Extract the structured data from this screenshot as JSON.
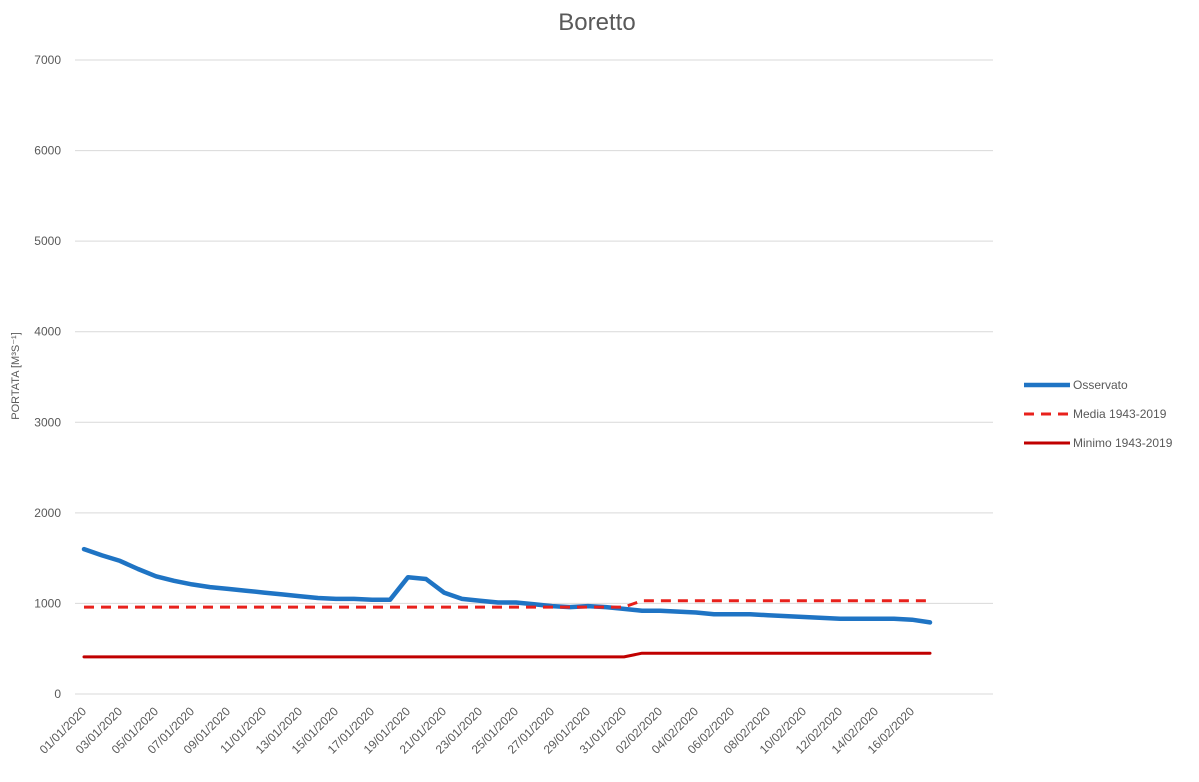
{
  "chart_data": {
    "type": "line",
    "title": "Boretto",
    "ylabel": "PORTATA [M³S⁻¹]",
    "xlabel": "",
    "ylim": [
      0,
      7000
    ],
    "yticks": [
      0,
      1000,
      2000,
      3000,
      4000,
      5000,
      6000,
      7000
    ],
    "grid": true,
    "legend_position": "right",
    "x": [
      "01/01/2020",
      "02/01/2020",
      "03/01/2020",
      "04/01/2020",
      "05/01/2020",
      "06/01/2020",
      "07/01/2020",
      "08/01/2020",
      "09/01/2020",
      "10/01/2020",
      "11/01/2020",
      "12/01/2020",
      "13/01/2020",
      "14/01/2020",
      "15/01/2020",
      "16/01/2020",
      "17/01/2020",
      "18/01/2020",
      "19/01/2020",
      "20/01/2020",
      "21/01/2020",
      "22/01/2020",
      "23/01/2020",
      "24/01/2020",
      "25/01/2020",
      "26/01/2020",
      "27/01/2020",
      "28/01/2020",
      "29/01/2020",
      "30/01/2020",
      "31/01/2020",
      "01/02/2020",
      "02/02/2020",
      "03/02/2020",
      "04/02/2020",
      "05/02/2020",
      "06/02/2020",
      "07/02/2020",
      "08/02/2020",
      "09/02/2020",
      "10/02/2020",
      "11/02/2020",
      "12/02/2020",
      "13/02/2020",
      "14/02/2020",
      "15/02/2020",
      "16/02/2020",
      "17/02/2020"
    ],
    "x_tick_labels": [
      "01/01/2020",
      "03/01/2020",
      "05/01/2020",
      "07/01/2020",
      "09/01/2020",
      "11/01/2020",
      "13/01/2020",
      "15/01/2020",
      "17/01/2020",
      "19/01/2020",
      "21/01/2020",
      "23/01/2020",
      "25/01/2020",
      "27/01/2020",
      "29/01/2020",
      "31/01/2020",
      "02/02/2020",
      "04/02/2020",
      "06/02/2020",
      "08/02/2020",
      "10/02/2020",
      "12/02/2020",
      "14/02/2020",
      "16/02/2020"
    ],
    "series": [
      {
        "name": "Osservato",
        "color": "#1f74c4",
        "style": "solid-thick",
        "values": [
          1600,
          1530,
          1470,
          1380,
          1300,
          1250,
          1210,
          1180,
          1160,
          1140,
          1120,
          1100,
          1080,
          1060,
          1050,
          1050,
          1040,
          1040,
          1290,
          1270,
          1120,
          1050,
          1030,
          1010,
          1010,
          990,
          970,
          960,
          970,
          960,
          940,
          920,
          920,
          910,
          900,
          880,
          880,
          880,
          870,
          860,
          850,
          840,
          830,
          830,
          830,
          830,
          820,
          790
        ]
      },
      {
        "name": "Media 1943-2019",
        "color": "#e8211c",
        "style": "dashed",
        "values": [
          960,
          960,
          960,
          960,
          960,
          960,
          960,
          960,
          960,
          960,
          960,
          960,
          960,
          960,
          960,
          960,
          960,
          960,
          960,
          960,
          960,
          960,
          960,
          960,
          960,
          960,
          960,
          960,
          960,
          960,
          960,
          1030,
          1030,
          1030,
          1030,
          1030,
          1030,
          1030,
          1030,
          1030,
          1030,
          1030,
          1030,
          1030,
          1030,
          1030,
          1030,
          1030
        ]
      },
      {
        "name": "Minimo 1943-2019",
        "color": "#c00000",
        "style": "solid",
        "values": [
          410,
          410,
          410,
          410,
          410,
          410,
          410,
          410,
          410,
          410,
          410,
          410,
          410,
          410,
          410,
          410,
          410,
          410,
          410,
          410,
          410,
          410,
          410,
          410,
          410,
          410,
          410,
          410,
          410,
          410,
          410,
          450,
          450,
          450,
          450,
          450,
          450,
          450,
          450,
          450,
          450,
          450,
          450,
          450,
          450,
          450,
          450,
          450
        ]
      }
    ]
  }
}
